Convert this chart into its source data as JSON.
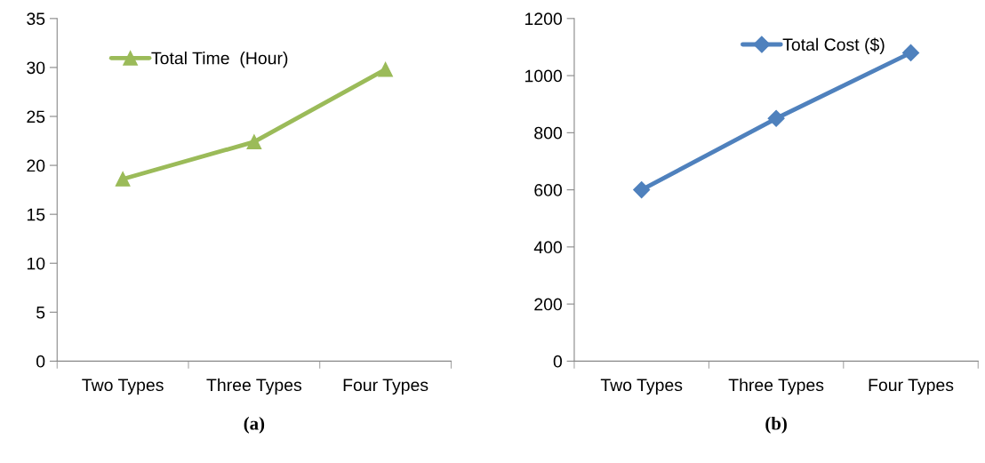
{
  "chart_data": [
    {
      "type": "line",
      "xlabel": "(a)",
      "categories": [
        "Two Types",
        "Three Types",
        "Four Types"
      ],
      "series": [
        {
          "name": "Total Time  (Hour)",
          "color": "#9bbb59",
          "values": [
            18.6,
            22.4,
            29.8
          ]
        }
      ],
      "ylim": [
        0,
        35
      ],
      "yticks": [
        0,
        5,
        10,
        15,
        20,
        25,
        30,
        35
      ],
      "marker": "triangle",
      "legend": "top left",
      "grid": false
    },
    {
      "type": "line",
      "xlabel": "(b)",
      "categories": [
        "Two Types",
        "Three Types",
        "Four Types"
      ],
      "series": [
        {
          "name": "Total Cost ($)",
          "color": "#4f81bd",
          "values": [
            600,
            850,
            1080
          ]
        }
      ],
      "ylim": [
        0,
        1200
      ],
      "yticks": [
        0,
        200,
        400,
        600,
        800,
        1000,
        1200
      ],
      "marker": "diamond",
      "legend": "top",
      "grid": false
    }
  ]
}
